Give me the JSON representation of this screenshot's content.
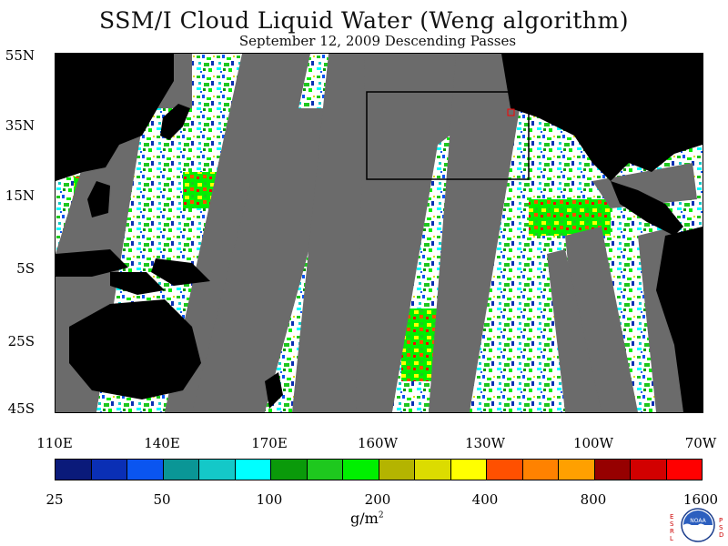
{
  "header": {
    "title": "SSM/I Cloud Liquid Water (Weng algorithm)",
    "subtitle": "September 12, 2009  Descending Passes"
  },
  "map": {
    "lat_labels": [
      "55N",
      "35N",
      "15N",
      "5S",
      "25S",
      "45S"
    ],
    "lon_labels": [
      "110E",
      "140E",
      "170E",
      "160W",
      "130W",
      "100W",
      "70W"
    ],
    "land_color": "#000000",
    "no_data_color": "#6b6b6b",
    "ocean_color": "#ffffff"
  },
  "colorbar": {
    "colors": [
      "#0a1a7a",
      "#0a2fb5",
      "#0a55f0",
      "#0a9696",
      "#14c8c8",
      "#00ffff",
      "#0a9a0a",
      "#1ec81e",
      "#00f000",
      "#b4b400",
      "#dcdc00",
      "#ffff00",
      "#ff5000",
      "#ff8200",
      "#ffa000",
      "#960000",
      "#d20000",
      "#ff0000"
    ],
    "tick_labels": [
      "25",
      "50",
      "100",
      "200",
      "400",
      "800",
      "1600"
    ],
    "units": "g/m",
    "units_exp": "2"
  },
  "logo": {
    "left_letters": [
      "E",
      "S",
      "R",
      "L"
    ],
    "right_letters": [
      "P",
      "S",
      "D"
    ],
    "center_text": "NOAA"
  }
}
